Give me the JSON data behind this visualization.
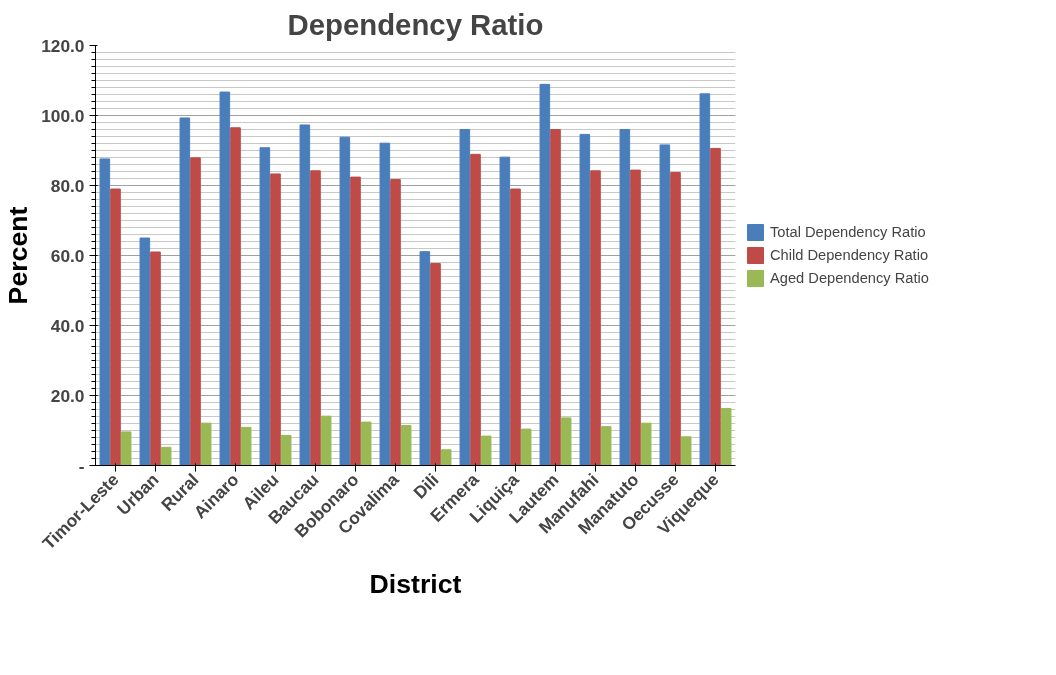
{
  "chart_data": {
    "type": "bar",
    "title": "Dependency Ratio",
    "xlabel": "District",
    "ylabel": "Percent",
    "categories": [
      "Timor-Leste",
      "Urban",
      "Rural",
      "Ainaro",
      "Aileu",
      "Baucau",
      "Bobonaro",
      "Covalima",
      "Dili",
      "Ermera",
      "Liquiça",
      "Lautem",
      "Manufahi",
      "Manatuto",
      "Oecusse",
      "Viqueque"
    ],
    "series": [
      {
        "name": "Total Dependency Ratio",
        "color": "#4a7ebb",
        "values": [
          87.6,
          65.0,
          99.3,
          106.7,
          90.8,
          97.3,
          93.8,
          92.1,
          61.1,
          96.0,
          88.1,
          108.9,
          94.6,
          96.0,
          91.6,
          106.2
        ]
      },
      {
        "name": "Child Dependency Ratio",
        "color": "#be4b48",
        "values": [
          79.0,
          61.0,
          87.9,
          96.5,
          83.3,
          84.2,
          82.4,
          81.7,
          57.7,
          88.9,
          79.0,
          96.0,
          84.2,
          84.4,
          83.7,
          90.6
        ]
      },
      {
        "name": "Aged Dependency Ratio",
        "color": "#98b954",
        "values": [
          9.6,
          5.2,
          12.1,
          10.9,
          8.6,
          14.1,
          12.4,
          11.4,
          4.5,
          8.4,
          10.4,
          13.6,
          11.1,
          12.1,
          8.2,
          16.3
        ]
      }
    ],
    "ylim": [
      0,
      120
    ],
    "yticks": [
      {
        "value": 0,
        "label": "-"
      },
      {
        "value": 20,
        "label": "20.0"
      },
      {
        "value": 40,
        "label": "40.0"
      },
      {
        "value": 60,
        "label": "60.0"
      },
      {
        "value": 80,
        "label": "80.0"
      },
      {
        "value": 100,
        "label": "100.0"
      },
      {
        "value": 120,
        "label": "120.0"
      }
    ],
    "grid": "y",
    "legend": "right"
  }
}
